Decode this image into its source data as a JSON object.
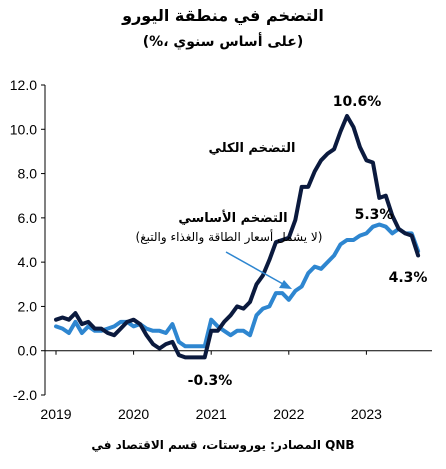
{
  "header": {
    "title": "التضخم في منطقة اليورو",
    "subtitle": "(%، على أساس سنوي)"
  },
  "source": "المصادر: يوروستات، قسم الاقتصاد في QNB",
  "colors": {
    "headline": "#0b1a3e",
    "core": "#2e86d0",
    "arrow": "#2e86d0",
    "axis": "#000000"
  },
  "chart_data": {
    "type": "line",
    "title": "التضخم في منطقة اليورو",
    "subtitle": "(%، على أساس سنوي)",
    "xlabel": "",
    "ylabel": "",
    "x_ticks": [
      "2019",
      "2020",
      "2021",
      "2022",
      "2023"
    ],
    "y_ticks": [
      "12.0",
      "10.0",
      "8.0",
      "6.0",
      "4.0",
      "2.0",
      "0.0",
      "-2.0"
    ],
    "ylim": [
      -2,
      12
    ],
    "x_start": 2019.0,
    "grid": false,
    "legend": "none",
    "series": [
      {
        "name": "التضخم الكلي",
        "values": [
          1.4,
          1.5,
          1.4,
          1.7,
          1.2,
          1.3,
          1.0,
          1.0,
          0.8,
          0.7,
          1.0,
          1.3,
          1.4,
          1.2,
          0.7,
          0.3,
          0.1,
          0.3,
          0.4,
          -0.2,
          -0.3,
          -0.3,
          -0.3,
          -0.3,
          0.9,
          0.9,
          1.3,
          1.6,
          2.0,
          1.9,
          2.2,
          3.0,
          3.4,
          4.1,
          4.9,
          5.0,
          5.1,
          5.9,
          7.4,
          7.4,
          8.1,
          8.6,
          8.9,
          9.1,
          9.9,
          10.6,
          10.1,
          9.2,
          8.6,
          8.5,
          6.9,
          7.0,
          6.1,
          5.5,
          5.3,
          5.2,
          4.3
        ]
      },
      {
        "name": "التضخم الأساسي",
        "values": [
          1.1,
          1.0,
          0.8,
          1.3,
          0.8,
          1.1,
          0.9,
          0.9,
          1.0,
          1.1,
          1.3,
          1.3,
          1.1,
          1.2,
          1.0,
          0.9,
          0.9,
          0.8,
          1.2,
          0.4,
          0.2,
          0.2,
          0.2,
          0.2,
          1.4,
          1.1,
          0.9,
          0.7,
          0.9,
          0.9,
          0.7,
          1.6,
          1.9,
          2.0,
          2.6,
          2.6,
          2.3,
          2.7,
          2.9,
          3.5,
          3.8,
          3.7,
          4.0,
          4.3,
          4.8,
          5.0,
          5.0,
          5.2,
          5.3,
          5.6,
          5.7,
          5.6,
          5.3,
          5.5,
          5.3,
          5.3,
          4.5
        ]
      }
    ],
    "annotations": [
      {
        "text": "10.6%"
      },
      {
        "text": "5.3%"
      },
      {
        "text": "4.3%"
      },
      {
        "text": "-0.3%"
      }
    ],
    "series_labels": {
      "headline": "التضخم الكلي",
      "core": "التضخم الأساسي",
      "core_note": "(لا يشمل أسعار الطاقة والغذاء والتبغ)"
    }
  }
}
